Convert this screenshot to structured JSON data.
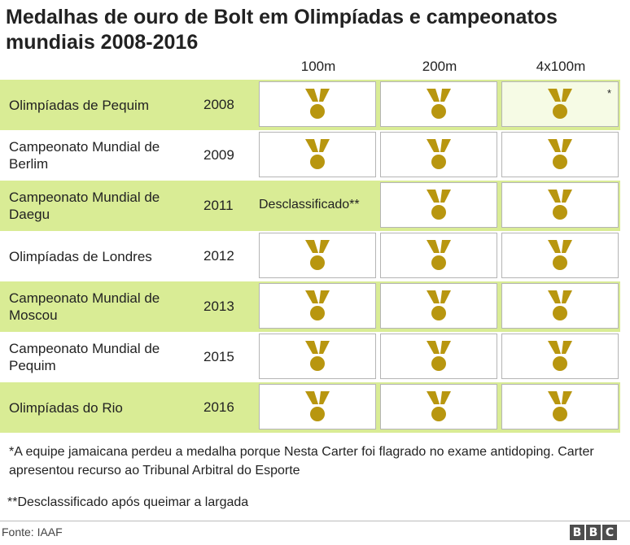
{
  "title": "Medalhas de ouro de Bolt em Olimpíadas e campeonatos mundiais 2008-2016",
  "columns": [
    "100m",
    "200m",
    "4x100m"
  ],
  "rows": [
    {
      "event": "Olimpíadas de Pequim",
      "year": "2008",
      "results": [
        "gold",
        "gold",
        "gold*"
      ]
    },
    {
      "event": "Campeonato Mundial de Berlim",
      "year": "2009",
      "results": [
        "gold",
        "gold",
        "gold"
      ]
    },
    {
      "event": "Campeonato Mundial de Daegu",
      "year": "2011",
      "results": [
        "Desclassificado**",
        "gold",
        "gold"
      ]
    },
    {
      "event": "Olimpíadas de Londres",
      "year": "2012",
      "results": [
        "gold",
        "gold",
        "gold"
      ]
    },
    {
      "event": "Campeonato Mundial de Moscou",
      "year": "2013",
      "results": [
        "gold",
        "gold",
        "gold"
      ]
    },
    {
      "event": "Campeonato Mundial de Pequim",
      "year": "2015",
      "results": [
        "gold",
        "gold",
        "gold"
      ]
    },
    {
      "event": "Olimpíadas do Rio",
      "year": "2016",
      "results": [
        "gold",
        "gold",
        "gold"
      ]
    }
  ],
  "notes": {
    "asterisk_mark": "*",
    "note1": "*A equipe jamaicana perdeu a medalha porque Nesta Carter foi flagrado no exame antidoping. Carter apresentou recurso ao Tribunal Arbitral do Esporte",
    "note2": "**Desclassificado após queimar a largada"
  },
  "source": "Fonte: IAAF",
  "brand": [
    "B",
    "B",
    "C"
  ],
  "colors": {
    "row_shade": "#d9ec95",
    "medal_gold": "#b8960f",
    "cell_border": "#b5b5b5"
  },
  "icons": {
    "medal": "gold-medal-icon"
  }
}
